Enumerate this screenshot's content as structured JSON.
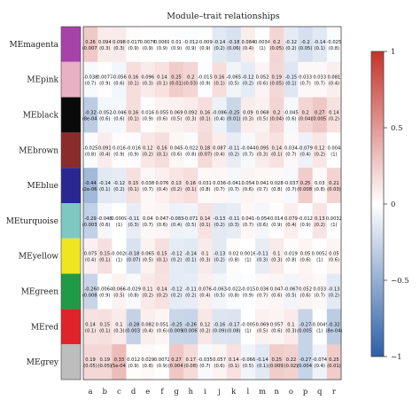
{
  "chart_data": {
    "type": "heatmap",
    "title": "Module–trait relationships",
    "rows": [
      "MEmagenta",
      "MEpink",
      "MEblack",
      "MEbrown",
      "MEblue",
      "MEturquoise",
      "MEyellow",
      "MEgreen",
      "MEred",
      "MEgrey"
    ],
    "row_colors": [
      "#a742a8",
      "#e8b1c4",
      "#0a0a0a",
      "#8b2c2c",
      "#2a2790",
      "#7fc8c1",
      "#f1e421",
      "#1f9b45",
      "#e0222a",
      "#bdbdbd"
    ],
    "columns": [
      "a",
      "b",
      "c",
      "d",
      "e",
      "f",
      "g",
      "h",
      "i",
      "j",
      "k",
      "l",
      "m",
      "n",
      "o",
      "p",
      "q",
      "r"
    ],
    "values": [
      [
        0.26,
        0.094,
        0.098,
        0.017,
        0.0076,
        0.0069,
        0.01,
        -0.012,
        -0.009,
        -0.14,
        -0.18,
        0.084,
        0.0034,
        0.2,
        -0.12,
        -0.2,
        -0.14,
        -0.025
      ],
      [
        -0.038,
        0.0077,
        -0.056,
        0.16,
        0.096,
        0.14,
        0.25,
        0.2,
        -0.015,
        0.16,
        -0.065,
        -0.12,
        0.052,
        0.19,
        -0.15,
        0.033,
        0.033,
        0.081
      ],
      [
        -0.32,
        -0.052,
        -0.046,
        0.16,
        0.016,
        0.055,
        0.069,
        0.092,
        0.16,
        -0.086,
        -0.25,
        0.09,
        0.068,
        0.2,
        -0.045,
        0.2,
        0.27,
        0.14
      ],
      [
        -0.025,
        0.091,
        0.016,
        -0.016,
        0.12,
        0.16,
        0.045,
        -0.022,
        0.18,
        0.087,
        -0.11,
        -0.044,
        0.095,
        0.14,
        0.034,
        -0.079,
        0.12,
        0.004
      ],
      [
        -0.44,
        -0.14,
        -0.12,
        0.15,
        0.038,
        0.076,
        0.13,
        0.16,
        0.031,
        0.036,
        -0.041,
        0.054,
        0.041,
        0.028,
        -0.037,
        0.25,
        0.03,
        0.21
      ],
      [
        -0.29,
        -0.048,
        0.0009,
        -0.11,
        0.04,
        0.047,
        -0.083,
        -0.071,
        0.14,
        -0.13,
        -0.11,
        0.041,
        -0.054,
        0.014,
        0.079,
        -0.012,
        0.13,
        0.0032
      ],
      [
        0.075,
        0.15,
        -0.0028,
        -0.18,
        0.065,
        0.15,
        -0.12,
        -0.14,
        0.1,
        -0.13,
        0.02,
        0.0016,
        -0.11,
        0.1,
        0.019,
        0.05,
        0.0052,
        0.05
      ],
      [
        -0.26,
        0.0064,
        0.066,
        -0.029,
        0.11,
        0.14,
        -0.12,
        -0.11,
        0.076,
        -0.063,
        -0.022,
        -0.015,
        0.036,
        0.047,
        -0.067,
        0.052,
        0.033,
        -0.13
      ],
      [
        0.14,
        0.15,
        0.1,
        -0.28,
        0.082,
        0.051,
        -0.25,
        -0.26,
        0.12,
        -0.16,
        -0.17,
        -0.005,
        0.069,
        0.057,
        0.1,
        -0.27,
        -0.0049,
        -0.32
      ],
      [
        0.19,
        0.19,
        0.33,
        0.012,
        0.029,
        0.0072,
        0.27,
        0.17,
        -0.035,
        0.057,
        0.14,
        -0.066,
        -0.14,
        0.25,
        0.22,
        -0.27,
        -0.074,
        0.25
      ]
    ],
    "pvalues": [
      [
        "0.007",
        "0.3",
        "0.3",
        "0.9",
        "0.9",
        "0.9",
        "0.9",
        "0.9",
        "0.9",
        "0.2",
        "0.06",
        "0.4",
        "1",
        "0.05",
        "0.2",
        "0.05",
        "0.1",
        "0.8"
      ],
      [
        "0.7",
        "0.9",
        "0.6",
        "0.1",
        "0.3",
        "0.1",
        "0.01",
        "0.03",
        "0.9",
        "0.1",
        "0.5",
        "0.2",
        "0.6",
        "0.05",
        "0.1",
        "0.7",
        "0.7",
        "0.4"
      ],
      [
        "8e-04",
        "0.6",
        "0.6",
        "0.1",
        "0.9",
        "0.6",
        "0.5",
        "0.3",
        "0.1",
        "0.4",
        "0.01",
        "0.3",
        "0.5",
        "0.04",
        "0.6",
        "0.04",
        "0.005",
        "0.2"
      ],
      [
        "0.8",
        "0.4",
        "0.9",
        "0.9",
        "0.2",
        "0.1",
        "0.6",
        "0.8",
        "0.07",
        "0.4",
        "0.2",
        "0.7",
        "0.3",
        "0.1",
        "0.7",
        "0.4",
        "0.2",
        "1"
      ],
      [
        "2e-06",
        "0.1",
        "0.2",
        "0.1",
        "0.7",
        "0.4",
        "0.2",
        "0.1",
        "0.8",
        "0.7",
        "0.7",
        "0.6",
        "0.7",
        "0.8",
        "0.7",
        "0.008",
        "0.8",
        "0.03"
      ],
      [
        "0.003",
        "0.6",
        "1",
        "0.3",
        "0.7",
        "0.6",
        "0.4",
        "0.5",
        "0.1",
        "0.2",
        "0.3",
        "0.7",
        "0.6",
        "0.9",
        "0.4",
        "0.9",
        "0.2",
        "1"
      ],
      [
        "0.4",
        "0.1",
        "1",
        "0.07",
        "0.5",
        "0.1",
        "0.2",
        "0.1",
        "0.3",
        "0.2",
        "0.8",
        "1",
        "0.3",
        "0.3",
        "0.8",
        "0.6",
        "1",
        "0.6"
      ],
      [
        "0.008",
        "0.9",
        "0.5",
        "0.8",
        "0.2",
        "0.2",
        "0.2",
        "0.2",
        "0.4",
        "0.5",
        "0.8",
        "0.9",
        "0.7",
        "0.6",
        "0.5",
        "0.6",
        "0.7",
        "0.2"
      ],
      [
        "0.1",
        "0.1",
        "0.3",
        "0.003",
        "0.4",
        "0.6",
        "0.009",
        "0.006",
        "0.2",
        "0.09",
        "0.08",
        "1",
        "0.5",
        "0.6",
        "0.3",
        "0.005",
        "1",
        "8e-04"
      ],
      [
        "0.05",
        "0.05",
        "5e-04",
        "0.9",
        "0.8",
        "0.9",
        "0.004",
        "0.08",
        "0.7",
        "0.6",
        "0.1",
        "0.5",
        "0.1",
        "0.009",
        "0.02",
        "0.004",
        "0.4",
        "0.01"
      ]
    ],
    "colorbar": {
      "min": -1,
      "max": 1,
      "ticks": [
        -1,
        -0.5,
        0,
        0.5,
        1
      ],
      "low_color": "#2c5fa8",
      "mid_color": "#ffffff",
      "high_color": "#c4332a"
    }
  }
}
